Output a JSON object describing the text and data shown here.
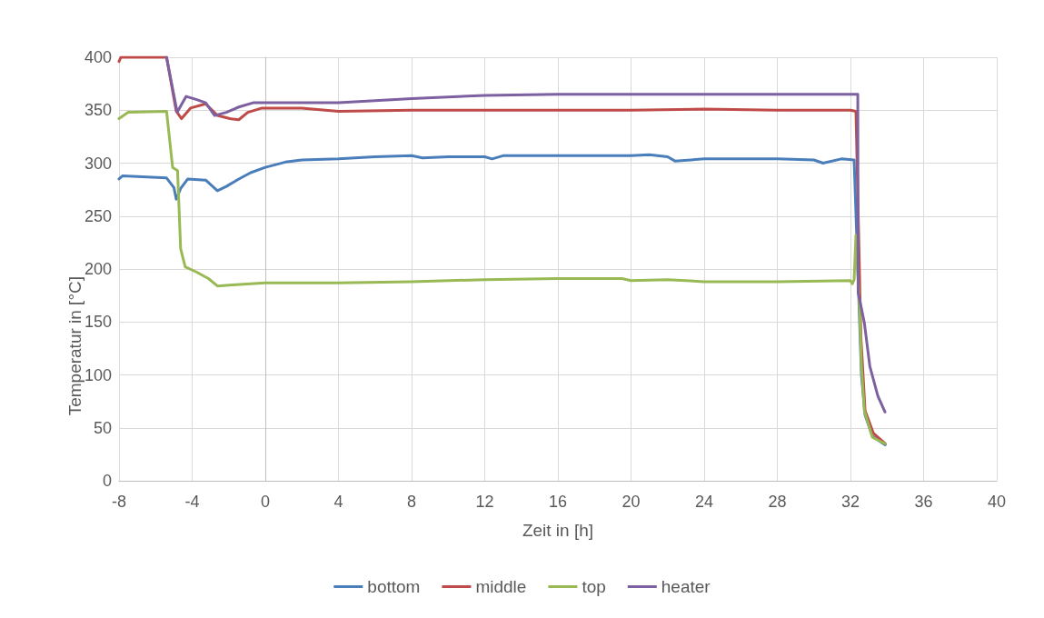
{
  "chart_data": {
    "type": "line",
    "xlabel": "Zeit in [h]",
    "ylabel": "Temperatur in [°C]",
    "xlim": [
      -8,
      40
    ],
    "xticks": [
      -8,
      -4,
      0,
      4,
      8,
      12,
      16,
      20,
      24,
      28,
      32,
      36,
      40
    ],
    "ylim": [
      0,
      400
    ],
    "yticks": [
      0,
      50,
      100,
      150,
      200,
      250,
      300,
      350,
      400
    ],
    "grid": true,
    "legend": "bottom",
    "marker": "none",
    "line_style": "solid",
    "series": [
      {
        "name": "bottom",
        "color": "#4a7ebb",
        "x": [
          -8,
          -7.8,
          -5.4,
          -5.0,
          -4.87,
          -4.63,
          -4.24,
          -3.26,
          -2.62,
          -2.13,
          -1.45,
          -0.8,
          0,
          1.1,
          2,
          4,
          6,
          8,
          8.6,
          10,
          12,
          12.4,
          13,
          20,
          21,
          22,
          22.4,
          24,
          28,
          30,
          30.5,
          31.5,
          32.2,
          32.5,
          32.6,
          32.8,
          33.2,
          33.9
        ],
        "values": [
          285,
          288,
          286,
          277,
          266,
          276,
          285,
          284,
          274,
          278,
          285,
          291,
          296,
          301,
          303,
          304,
          306,
          307,
          305,
          306,
          306,
          304,
          307,
          307,
          308,
          306,
          302,
          304,
          304,
          303,
          300,
          304,
          303,
          150,
          100,
          62,
          42,
          34
        ]
      },
      {
        "name": "middle",
        "color": "#be4b48",
        "x": [
          -8,
          -7.9,
          -5.4,
          -4.87,
          -4.58,
          -4.09,
          -3.26,
          -2.62,
          -1.94,
          -1.45,
          -0.96,
          -0.18,
          2,
          4,
          8,
          12,
          16,
          20,
          24,
          28,
          32,
          32.3,
          32.57,
          32.8,
          33.25,
          33.9
        ],
        "values": [
          396,
          400,
          400,
          349,
          342,
          352,
          356,
          345,
          342,
          341,
          348,
          352,
          352,
          349,
          350,
          350,
          350,
          350,
          351,
          350,
          350,
          349,
          136,
          66,
          45,
          35
        ]
      },
      {
        "name": "top",
        "color": "#98b954",
        "x": [
          -8,
          -7.5,
          -5.4,
          -5.07,
          -4.8,
          -4.63,
          -4.38,
          -3.75,
          -3.11,
          -2.62,
          -1.8,
          0,
          4,
          8,
          12,
          16,
          19.5,
          20,
          22,
          24,
          28,
          32,
          32.1,
          32.2,
          32.3,
          32.5,
          32.6,
          32.76,
          33.2,
          33.9
        ],
        "values": [
          342,
          348,
          349,
          296,
          293,
          219,
          202,
          197,
          191,
          184,
          185,
          187,
          187,
          188,
          190,
          191,
          191,
          189,
          190,
          188,
          188,
          189,
          186,
          190,
          232,
          163,
          108,
          66,
          41,
          35
        ]
      },
      {
        "name": "heater",
        "color": "#7d60a0",
        "x": [
          -5.4,
          -4.82,
          -4.33,
          -3.75,
          -3.26,
          -2.77,
          -2.13,
          -1.45,
          -0.67,
          0,
          4,
          8,
          12,
          16,
          20,
          32,
          32.4,
          32.42,
          32.76,
          33.06,
          33.5,
          33.89
        ],
        "values": [
          400,
          348,
          363,
          360,
          357,
          345,
          348,
          353,
          357,
          357,
          357,
          361,
          364,
          365,
          365,
          365,
          365,
          178,
          149,
          108,
          80,
          65
        ]
      }
    ]
  }
}
